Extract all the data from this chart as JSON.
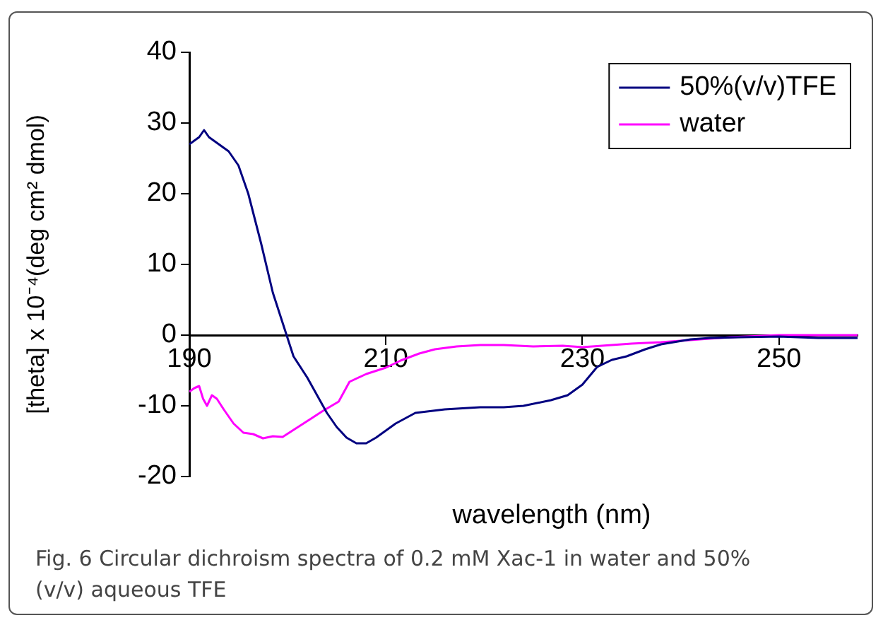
{
  "chart_data": {
    "type": "line",
    "xlabel": "wavelength (nm)",
    "ylabel": "[theta] x 10⁻⁴(deg cm² dmol)",
    "xlim": [
      190,
      258
    ],
    "xticks": [
      190,
      210,
      230,
      250
    ],
    "ylim": [
      -20,
      40
    ],
    "yticks": [
      -20,
      -10,
      0,
      10,
      20,
      30,
      40
    ],
    "grid": false,
    "legend": "top right",
    "marker": "none",
    "line_style": "solid",
    "annotations": [
      "Fig. 6 Circular dichroism spectra of 0.2 mM Xac-1 in water and 50%(v/v) aqueous TFE"
    ],
    "series": [
      {
        "name": "50%(v/v)TFE",
        "color": "#000080",
        "x": [
          190,
          190.5,
          191,
          191.5,
          192,
          193,
          194,
          195,
          196,
          197.3,
          198.5,
          199.9,
          200.6,
          202,
          203,
          204,
          205,
          206,
          207,
          208,
          209,
          210,
          211,
          213,
          216,
          219.6,
          222,
          224,
          226.8,
          228.5,
          230,
          231.5,
          233,
          234.5,
          236.4,
          238,
          241,
          243,
          246,
          250,
          254,
          258
        ],
        "values": [
          27,
          27.5,
          28,
          29,
          28,
          27,
          26,
          24,
          20,
          13,
          6,
          0,
          -3,
          -6,
          -8.5,
          -11,
          -13,
          -14.5,
          -15.3,
          -15.3,
          -14.5,
          -13.5,
          -12.5,
          -11,
          -10.5,
          -10.2,
          -10.2,
          -10,
          -9.2,
          -8.5,
          -7,
          -4.5,
          -3.5,
          -3,
          -2,
          -1.3,
          -0.6,
          -0.4,
          -0.3,
          -0.2,
          -0.4,
          -0.4
        ]
      },
      {
        "name": "water",
        "color": "#ff00ff",
        "x": [
          190,
          190.5,
          191,
          191.4,
          191.8,
          192.3,
          192.8,
          193.5,
          194.5,
          195.5,
          196.5,
          197.5,
          198.5,
          199.5,
          200.5,
          202.4,
          203.5,
          205.2,
          206.3,
          208,
          210,
          211.5,
          213.4,
          215,
          217.2,
          219.6,
          222,
          225,
          228,
          230,
          232,
          235,
          238,
          240,
          245,
          250,
          254,
          258
        ],
        "values": [
          -8,
          -7.5,
          -7.2,
          -9,
          -10,
          -8.5,
          -9,
          -10.5,
          -12.5,
          -13.8,
          -14,
          -14.6,
          -14.3,
          -14.4,
          -13.5,
          -11.8,
          -10.8,
          -9.4,
          -6.6,
          -5.5,
          -4.6,
          -3.6,
          -2.6,
          -2,
          -1.6,
          -1.4,
          -1.4,
          -1.6,
          -1.5,
          -1.7,
          -1.5,
          -1.2,
          -1,
          -0.8,
          -0.3,
          0,
          0,
          0
        ]
      }
    ]
  }
}
